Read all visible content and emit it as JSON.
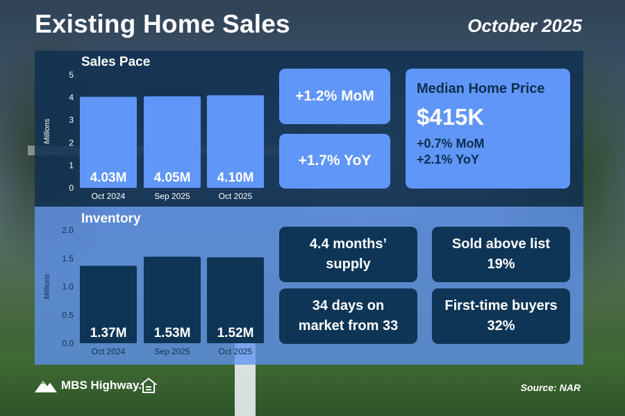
{
  "header": {
    "title": "Existing Home Sales",
    "date": "October 2025"
  },
  "sales": {
    "title": "Sales Pace",
    "stats": {
      "mom": "+1.2% MoM",
      "yoy": "+1.7% YoY"
    }
  },
  "median_price": {
    "label": "Median Home Price",
    "value": "$415K",
    "mom": "+0.7% MoM",
    "yoy": "+2.1% YoY"
  },
  "inventory": {
    "title": "Inventory",
    "supply_line1": "4.4 months’",
    "supply_line2": "supply",
    "days_line1": "34 days on",
    "days_line2": "market from 33",
    "sold_above_label": "Sold above list",
    "sold_above_value": "19%",
    "first_time_label": "First-time buyers",
    "first_time_value": "32%"
  },
  "footer": {
    "brand": "MBS Highway.",
    "source": "Source: NAR"
  },
  "colors": {
    "top_bar": "#5f96f8",
    "bottom_bar": "#0e3556",
    "card_light": "#5f96f8",
    "card_dark": "#0e3556"
  },
  "icons": {
    "logo": "mountain-logo-icon",
    "eho": "equal-housing-icon"
  },
  "chart_data": [
    {
      "type": "bar",
      "title": "Sales Pace",
      "ylabel": "Millions",
      "categories": [
        "Oct 2024",
        "Sep 2025",
        "Oct 2025"
      ],
      "values": [
        4.03,
        4.05,
        4.1
      ],
      "value_labels": [
        "4.03M",
        "4.05M",
        "4.10M"
      ],
      "ylim": [
        0,
        5
      ],
      "yticks": [
        "0",
        "1",
        "2",
        "3",
        "4",
        "5"
      ],
      "grid": false
    },
    {
      "type": "bar",
      "title": "Inventory",
      "ylabel": "Millions",
      "categories": [
        "Oct 2024",
        "Sep 2025",
        "Oct 2025"
      ],
      "values": [
        1.37,
        1.53,
        1.52
      ],
      "value_labels": [
        "1.37M",
        "1.53M",
        "1.52M"
      ],
      "ylim": [
        0,
        2
      ],
      "yticks": [
        "0.0",
        "0.5",
        "1.0",
        "1.5",
        "2.0"
      ],
      "grid": false
    }
  ]
}
